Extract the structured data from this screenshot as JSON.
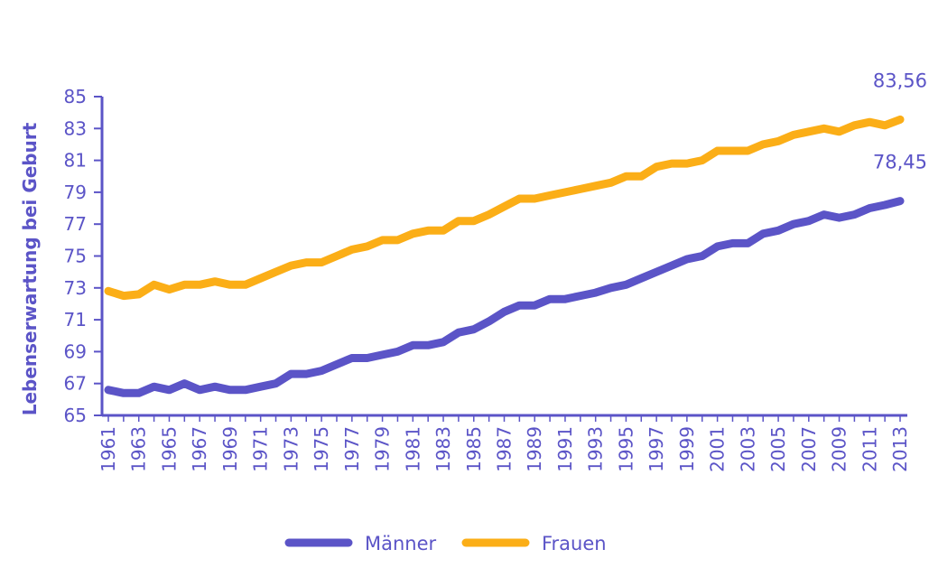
{
  "chart_data": {
    "type": "line",
    "title": "",
    "xlabel": "",
    "ylabel": "Lebenserwartung bei Geburt",
    "ylim": [
      65,
      85
    ],
    "yticks": [
      "65",
      "67",
      "69",
      "71",
      "73",
      "75",
      "77",
      "79",
      "81",
      "83",
      "85"
    ],
    "xlim": [
      1961,
      2013
    ],
    "xticks": [
      "1961",
      "1963",
      "1965",
      "1967",
      "1969",
      "1971",
      "1973",
      "1975",
      "1977",
      "1979",
      "1981",
      "1983",
      "1985",
      "1987",
      "1989",
      "1991",
      "1993",
      "1995",
      "1997",
      "1999",
      "2001",
      "2003",
      "2005",
      "2007",
      "2009",
      "2011",
      "2013"
    ],
    "legend_position": "bottom",
    "grid": false,
    "colors": {
      "axis": "#5b54c7",
      "text": "#5b54c7"
    },
    "x": [
      1961,
      1962,
      1963,
      1964,
      1965,
      1966,
      1967,
      1968,
      1969,
      1970,
      1971,
      1972,
      1973,
      1974,
      1975,
      1976,
      1977,
      1978,
      1979,
      1980,
      1981,
      1982,
      1983,
      1984,
      1985,
      1986,
      1987,
      1988,
      1989,
      1990,
      1991,
      1992,
      1993,
      1994,
      1995,
      1996,
      1997,
      1998,
      1999,
      2000,
      2001,
      2002,
      2003,
      2004,
      2005,
      2006,
      2007,
      2008,
      2009,
      2010,
      2011,
      2012,
      2013
    ],
    "series": [
      {
        "name": "Männer",
        "color": "#5b54c7",
        "values": [
          66.6,
          66.4,
          66.4,
          66.8,
          66.6,
          67.0,
          66.6,
          66.8,
          66.6,
          66.6,
          66.8,
          67.0,
          67.6,
          67.6,
          67.8,
          68.2,
          68.6,
          68.6,
          68.8,
          69.0,
          69.4,
          69.4,
          69.6,
          70.2,
          70.4,
          70.9,
          71.5,
          71.9,
          71.9,
          72.3,
          72.3,
          72.5,
          72.7,
          73.0,
          73.2,
          73.6,
          74.0,
          74.4,
          74.8,
          75.0,
          75.6,
          75.8,
          75.8,
          76.4,
          76.6,
          77.0,
          77.2,
          77.6,
          77.4,
          77.6,
          78.0,
          78.2,
          78.45
        ],
        "end_label": "78,45"
      },
      {
        "name": "Frauen",
        "color": "#fbae17",
        "values": [
          72.8,
          72.5,
          72.6,
          73.2,
          72.9,
          73.2,
          73.2,
          73.4,
          73.2,
          73.2,
          73.6,
          74.0,
          74.4,
          74.6,
          74.6,
          75.0,
          75.4,
          75.6,
          76.0,
          76.0,
          76.4,
          76.6,
          76.6,
          77.2,
          77.2,
          77.6,
          78.1,
          78.6,
          78.6,
          78.8,
          79.0,
          79.2,
          79.4,
          79.6,
          80.0,
          80.0,
          80.6,
          80.8,
          80.8,
          81.0,
          81.6,
          81.6,
          81.6,
          82.0,
          82.2,
          82.6,
          82.8,
          83.0,
          82.8,
          83.2,
          83.4,
          83.2,
          83.56
        ],
        "end_label": "83,56"
      }
    ]
  }
}
